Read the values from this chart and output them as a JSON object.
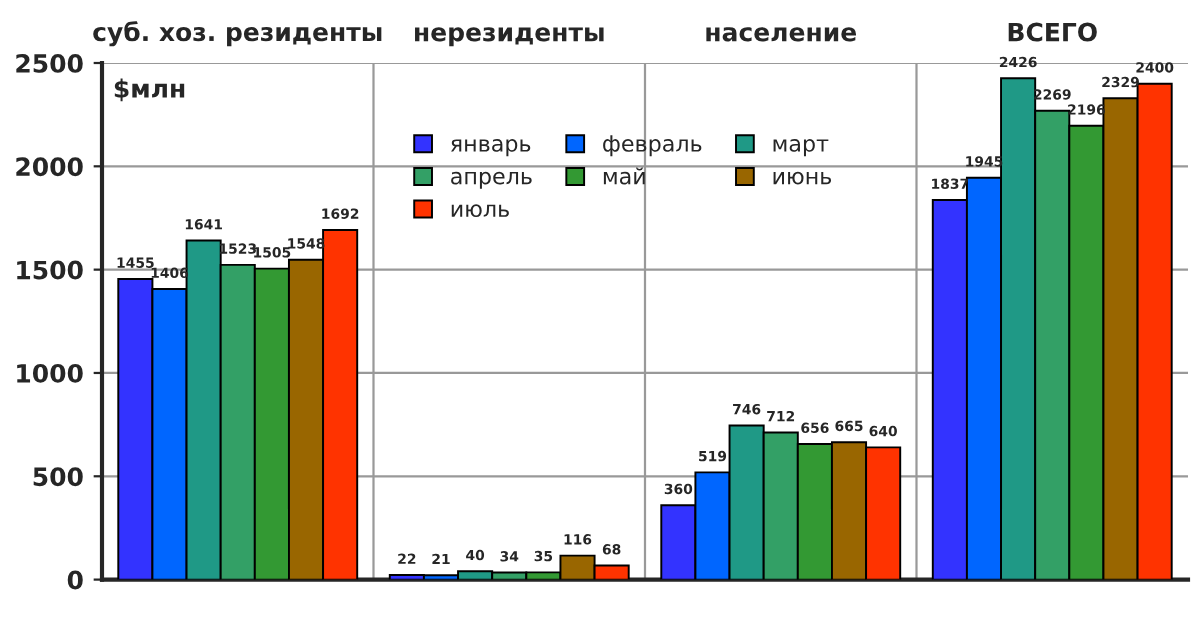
{
  "chart_data": {
    "type": "bar",
    "ylabel": "$млн",
    "categories": [
      "суб. хоз. резиденты",
      "нерезиденты",
      "население",
      "ВСЕГО"
    ],
    "series": [
      {
        "name": "январь",
        "color": "#3333ff",
        "values": [
          1455,
          22,
          360,
          1837
        ]
      },
      {
        "name": "февраль",
        "color": "#0066ff",
        "values": [
          1406,
          21,
          519,
          1945
        ]
      },
      {
        "name": "март",
        "color": "#1f9986",
        "values": [
          1641,
          40,
          746,
          2426
        ]
      },
      {
        "name": "апрель",
        "color": "#33a066",
        "values": [
          1523,
          34,
          712,
          2269
        ]
      },
      {
        "name": "май",
        "color": "#339933",
        "values": [
          1505,
          35,
          656,
          2196
        ]
      },
      {
        "name": "июнь",
        "color": "#996600",
        "values": [
          1548,
          116,
          665,
          2329
        ]
      },
      {
        "name": "июль",
        "color": "#ff3300",
        "values": [
          1692,
          68,
          640,
          2400
        ]
      }
    ],
    "ylim": [
      0,
      2500
    ],
    "yticks": [
      0,
      500,
      1000,
      1500,
      2000,
      2500
    ],
    "grid": true,
    "legend": "top",
    "data_labels": true
  }
}
